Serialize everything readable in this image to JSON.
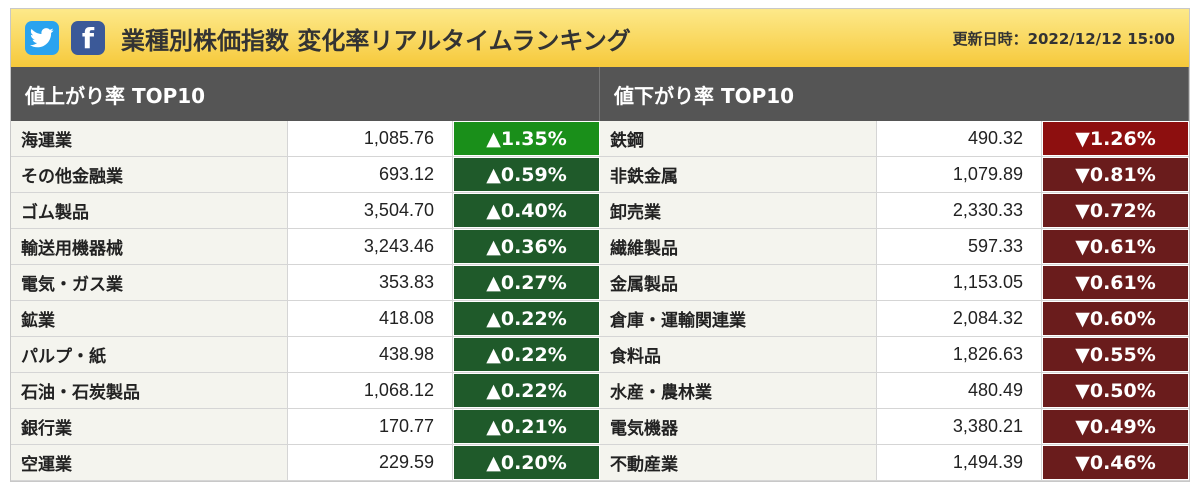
{
  "header": {
    "title": "業種別株価指数 変化率リアルタイムランキング",
    "updated": "更新日時：2022/12/12 15:00",
    "icons": [
      "twitter-icon",
      "facebook-icon"
    ],
    "twitter_color": "#2aa3ef",
    "facebook_color": "#3b5998",
    "facebook_glyph": "f"
  },
  "gainers": {
    "heading": "値上がり率 TOP10",
    "rows": [
      {
        "name": "海運業",
        "value": "1,085.76",
        "change": "▲1.35%"
      },
      {
        "name": "その他金融業",
        "value": "693.12",
        "change": "▲0.59%"
      },
      {
        "name": "ゴム製品",
        "value": "3,504.70",
        "change": "▲0.40%"
      },
      {
        "name": "輸送用機器械",
        "value": "3,243.46",
        "change": "▲0.36%"
      },
      {
        "name": "電気・ガス業",
        "value": "353.83",
        "change": "▲0.27%"
      },
      {
        "name": "鉱業",
        "value": "418.08",
        "change": "▲0.22%"
      },
      {
        "name": "パルプ・紙",
        "value": "438.98",
        "change": "▲0.22%"
      },
      {
        "name": "石油・石炭製品",
        "value": "1,068.12",
        "change": "▲0.22%"
      },
      {
        "name": "銀行業",
        "value": "170.77",
        "change": "▲0.21%"
      },
      {
        "name": "空運業",
        "value": "229.59",
        "change": "▲0.20%"
      }
    ]
  },
  "losers": {
    "heading": "値下がり率 TOP10",
    "rows": [
      {
        "name": "鉄鋼",
        "value": "490.32",
        "change": "▼1.26%"
      },
      {
        "name": "非鉄金属",
        "value": "1,079.89",
        "change": "▼0.81%"
      },
      {
        "name": "卸売業",
        "value": "2,330.33",
        "change": "▼0.72%"
      },
      {
        "name": "繊維製品",
        "value": "597.33",
        "change": "▼0.61%"
      },
      {
        "name": "金属製品",
        "value": "1,153.05",
        "change": "▼0.61%"
      },
      {
        "name": "倉庫・運輸関連業",
        "value": "2,084.32",
        "change": "▼0.60%"
      },
      {
        "name": "食料品",
        "value": "1,826.63",
        "change": "▼0.55%"
      },
      {
        "name": "水産・農林業",
        "value": "480.49",
        "change": "▼0.50%"
      },
      {
        "name": "電気機器",
        "value": "3,380.21",
        "change": "▼0.49%"
      },
      {
        "name": "不動産業",
        "value": "1,494.39",
        "change": "▼0.46%"
      }
    ]
  }
}
